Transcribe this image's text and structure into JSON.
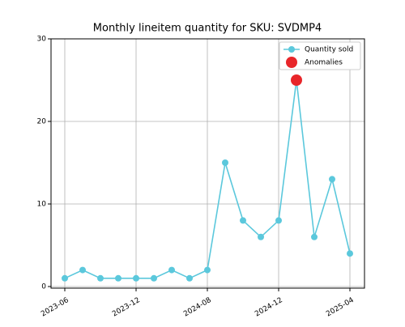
{
  "chart_data": {
    "type": "line",
    "title": "Monthly lineitem quantity for SKU: SVDMP4",
    "categories": [
      "2023-06",
      null,
      null,
      null,
      "2023-12",
      null,
      null,
      null,
      "2024-08",
      null,
      null,
      null,
      "2024-12",
      null,
      null,
      null,
      "2025-04"
    ],
    "series": [
      {
        "name": "Quantity sold",
        "color": "#5bc8dc",
        "values": [
          1,
          2,
          1,
          1,
          1,
          1,
          2,
          1,
          2,
          15,
          8,
          6,
          8,
          25,
          6,
          13,
          4
        ]
      },
      {
        "name": "Anomalies",
        "color": "#e8262a",
        "values": [
          null,
          null,
          null,
          null,
          null,
          null,
          null,
          null,
          null,
          null,
          null,
          null,
          null,
          25,
          null,
          null,
          null
        ]
      }
    ],
    "ylim": [
      0,
      30
    ],
    "yticks": [
      0,
      10,
      20,
      30
    ],
    "grid": true,
    "legend": "upper right"
  }
}
